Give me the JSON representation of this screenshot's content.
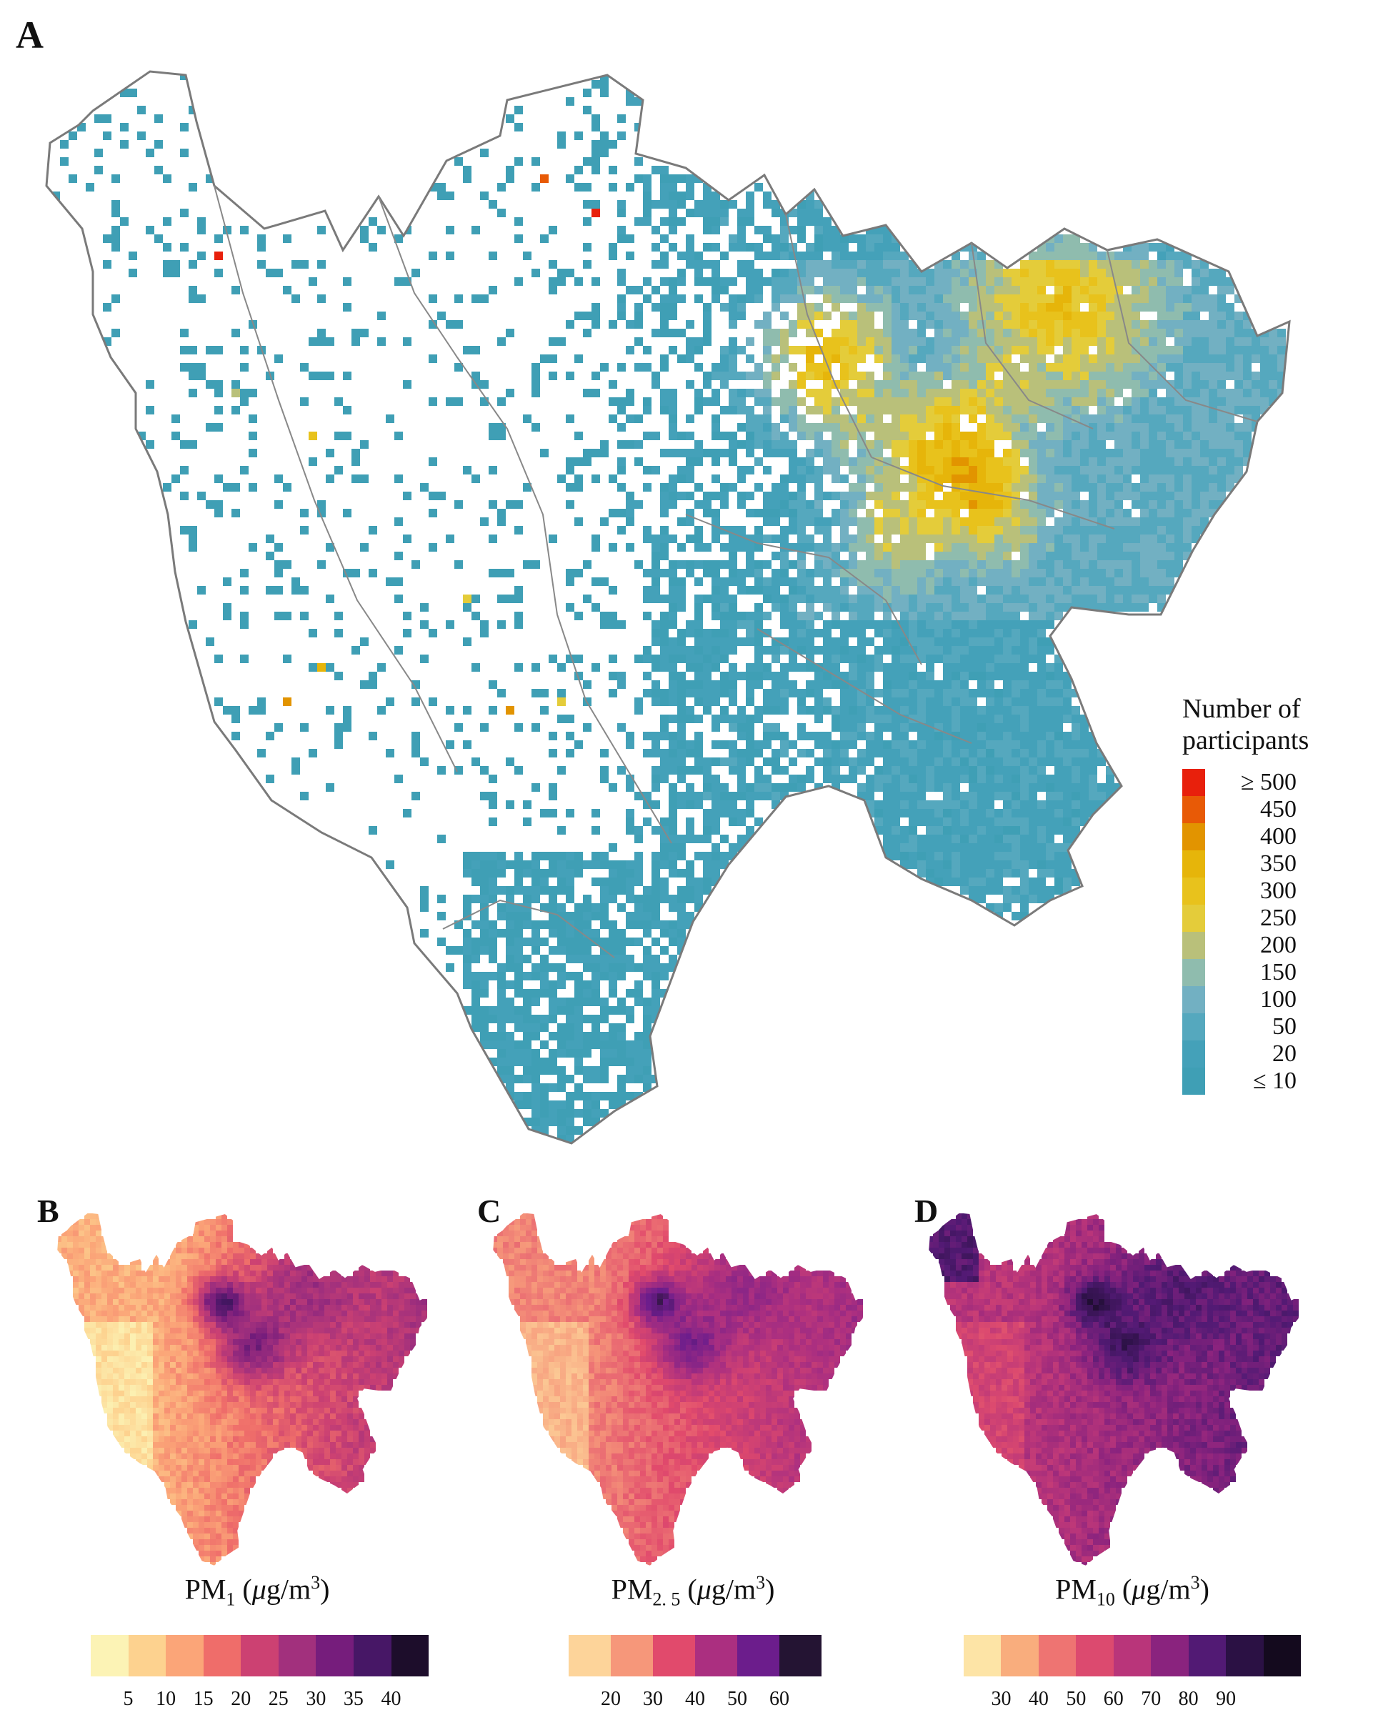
{
  "panels": {
    "a": {
      "letter": "A"
    },
    "b": {
      "letter": "B"
    },
    "c": {
      "letter": "C"
    },
    "d": {
      "letter": "D"
    }
  },
  "legend_a": {
    "title_line1": "Number of",
    "title_line2": "participants",
    "items": [
      {
        "label": "≥ 500",
        "color": "#e8200c"
      },
      {
        "label": "450",
        "color": "#e85a06"
      },
      {
        "label": "400",
        "color": "#e29400"
      },
      {
        "label": "350",
        "color": "#e6b50a"
      },
      {
        "label": "300",
        "color": "#e8c21c"
      },
      {
        "label": "250",
        "color": "#e4cc3a"
      },
      {
        "label": "200",
        "color": "#b9c07a"
      },
      {
        "label": "150",
        "color": "#8fbcae"
      },
      {
        "label": "100",
        "color": "#72b0c2"
      },
      {
        "label": "50",
        "color": "#55a8be"
      },
      {
        "label": "20",
        "color": "#44a1b9"
      },
      {
        "label": "≤ 10",
        "color": "#3f9fb5"
      }
    ]
  },
  "colorbars": {
    "pm1": {
      "title_main": "PM",
      "title_sub": "1",
      "title_unit_pre": " (",
      "title_unit_mu": "μ",
      "title_unit_mid": "g/m",
      "title_unit_sup": "3",
      "title_unit_post": ")",
      "colors": [
        "#fcf3b5",
        "#fdd28f",
        "#fba578",
        "#ef6d6a",
        "#cc4172",
        "#a2307d",
        "#761d7c",
        "#471766",
        "#1d0d2b"
      ],
      "ticks": [
        "5",
        "10",
        "15",
        "20",
        "25",
        "30",
        "35",
        "40"
      ]
    },
    "pm25": {
      "title_main": "PM",
      "title_sub": "2. 5",
      "title_unit_pre": " (",
      "title_unit_mu": "μ",
      "title_unit_mid": "g/m",
      "title_unit_sup": "3",
      "title_unit_post": ")",
      "colors": [
        "#fdd49a",
        "#f6977a",
        "#e14a6c",
        "#ab2f80",
        "#6c1d8c",
        "#241433"
      ],
      "ticks": [
        "20",
        "30",
        "40",
        "50",
        "60"
      ]
    },
    "pm10": {
      "title_main": "PM",
      "title_sub": "10",
      "title_unit_pre": " (",
      "title_unit_mu": "μ",
      "title_unit_mid": "g/m",
      "title_unit_sup": "3",
      "title_unit_post": ")",
      "colors": [
        "#fde4a6",
        "#f9ad7d",
        "#ee7472",
        "#dc4a6f",
        "#b9357a",
        "#8a237e",
        "#521a74",
        "#2b1144",
        "#140a1e"
      ],
      "ticks": [
        "30",
        "40",
        "50",
        "60",
        "70",
        "80",
        "90"
      ]
    }
  }
}
